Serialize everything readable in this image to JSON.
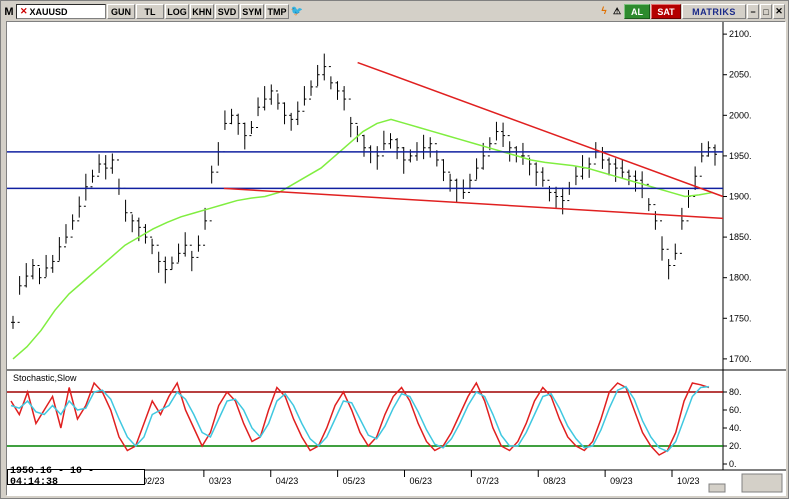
{
  "toolbar": {
    "menu_label": "M",
    "symbol": "XAUUSD",
    "buttons": [
      "GUN",
      "TL",
      "LOG",
      "KHN",
      "SVD",
      "SYM",
      "TMP"
    ],
    "buy_label": "AL",
    "sell_label": "SAT",
    "brand": "MATRIKS"
  },
  "status": {
    "readout": "1950.16 - 10 - 04:14:38"
  },
  "indicator": {
    "label": "Stochastic,Slow"
  },
  "colors": {
    "price": "#000000",
    "sma": "#80ee40",
    "trend": "#e02020",
    "level": "#1020a0",
    "stoch_k": "#e02020",
    "stoch_d": "#40c8e0",
    "ob": "#a00000",
    "os": "#008000"
  },
  "chart_data": [
    {
      "type": "line",
      "price_axis": {
        "ticks": [
          1700,
          1750,
          1800,
          1850,
          1900,
          1950,
          2000,
          2050,
          2100
        ],
        "range": [
          1690,
          2110
        ]
      },
      "x_labels": [
        "02/23",
        "03/23",
        "04/23",
        "05/23",
        "06/23",
        "07/23",
        "08/23",
        "09/23",
        "10/23"
      ],
      "horizontal_levels": [
        1955,
        1910
      ],
      "trend_lines": [
        {
          "from": [
            "05/23",
            2065
          ],
          "to": [
            "10/23",
            1900
          ]
        },
        {
          "from": [
            "03/23",
            1910
          ],
          "to": [
            "10/23",
            1873
          ]
        }
      ],
      "close": [
        1745,
        1790,
        1802,
        1815,
        1800,
        1812,
        1820,
        1838,
        1850,
        1870,
        1888,
        1912,
        1925,
        1940,
        1935,
        1945,
        1910,
        1880,
        1870,
        1862,
        1850,
        1840,
        1820,
        1810,
        1818,
        1830,
        1840,
        1825,
        1840,
        1870,
        1930,
        1955,
        1990,
        2000,
        1990,
        1975,
        1985,
        2010,
        2020,
        2030,
        2015,
        2000,
        1995,
        2005,
        2020,
        2035,
        2050,
        2060,
        2040,
        2030,
        2020,
        1990,
        1975,
        1960,
        1955,
        1950,
        1965,
        1970,
        1960,
        1945,
        1950,
        1955,
        1960,
        1965,
        1945,
        1930,
        1920,
        1910,
        1905,
        1920,
        1935,
        1950,
        1965,
        1980,
        1975,
        1960,
        1950,
        1950,
        1940,
        1930,
        1920,
        1905,
        1900,
        1895,
        1910,
        1925,
        1935,
        1940,
        1955,
        1945,
        1940,
        1935,
        1930,
        1925,
        1920,
        1915,
        1890,
        1870,
        1835,
        1815,
        1830,
        1870,
        1900,
        1925,
        1950,
        1960,
        1952
      ],
      "sma_50": [
        1700,
        1715,
        1735,
        1760,
        1780,
        1795,
        1810,
        1825,
        1840,
        1850,
        1860,
        1868,
        1875,
        1880,
        1885,
        1890,
        1895,
        1898,
        1900,
        1905,
        1915,
        1925,
        1935,
        1950,
        1965,
        1980,
        1990,
        1995,
        1990,
        1985,
        1980,
        1975,
        1970,
        1965,
        1960,
        1955,
        1950,
        1945,
        1942,
        1940,
        1938,
        1935,
        1930,
        1925,
        1920,
        1915,
        1910,
        1905,
        1900,
        1902,
        1905
      ]
    },
    {
      "type": "line",
      "title": "Stochastic,Slow",
      "y_axis": {
        "ticks": [
          0,
          20,
          40,
          60,
          80
        ],
        "range": [
          0,
          100
        ]
      },
      "levels": [
        80,
        20
      ],
      "x_labels": [
        "02/23",
        "03/23",
        "04/23",
        "05/23",
        "06/23",
        "07/23",
        "08/23",
        "09/23",
        "10/23"
      ],
      "series": [
        {
          "values": [
            70,
            55,
            80,
            45,
            60,
            75,
            40,
            85,
            50,
            65,
            90,
            80,
            60,
            30,
            15,
            20,
            45,
            70,
            55,
            75,
            90,
            60,
            40,
            20,
            35,
            65,
            80,
            70,
            45,
            25,
            30,
            60,
            85,
            75,
            50,
            30,
            15,
            20,
            40,
            65,
            80,
            60,
            35,
            20,
            30,
            55,
            75,
            85,
            70,
            45,
            25,
            15,
            20,
            35,
            55,
            75,
            90,
            70,
            40,
            20,
            15,
            25,
            45,
            70,
            85,
            75,
            50,
            30,
            20,
            15,
            25,
            50,
            80,
            90,
            85,
            60,
            35,
            20,
            10,
            15,
            35,
            70,
            90,
            88,
            85
          ]
        },
        {
          "values": [
            65,
            62,
            70,
            58,
            55,
            65,
            55,
            70,
            60,
            62,
            80,
            82,
            72,
            50,
            30,
            20,
            30,
            55,
            60,
            65,
            80,
            72,
            55,
            35,
            30,
            50,
            70,
            72,
            60,
            40,
            30,
            45,
            70,
            78,
            65,
            45,
            28,
            20,
            30,
            50,
            70,
            68,
            50,
            32,
            28,
            42,
            62,
            78,
            75,
            58,
            38,
            22,
            18,
            28,
            45,
            65,
            80,
            75,
            55,
            32,
            20,
            20,
            35,
            55,
            75,
            78,
            62,
            42,
            28,
            18,
            20,
            38,
            62,
            82,
            86,
            72,
            48,
            30,
            18,
            14,
            25,
            50,
            75,
            85,
            86
          ]
        }
      ]
    }
  ]
}
